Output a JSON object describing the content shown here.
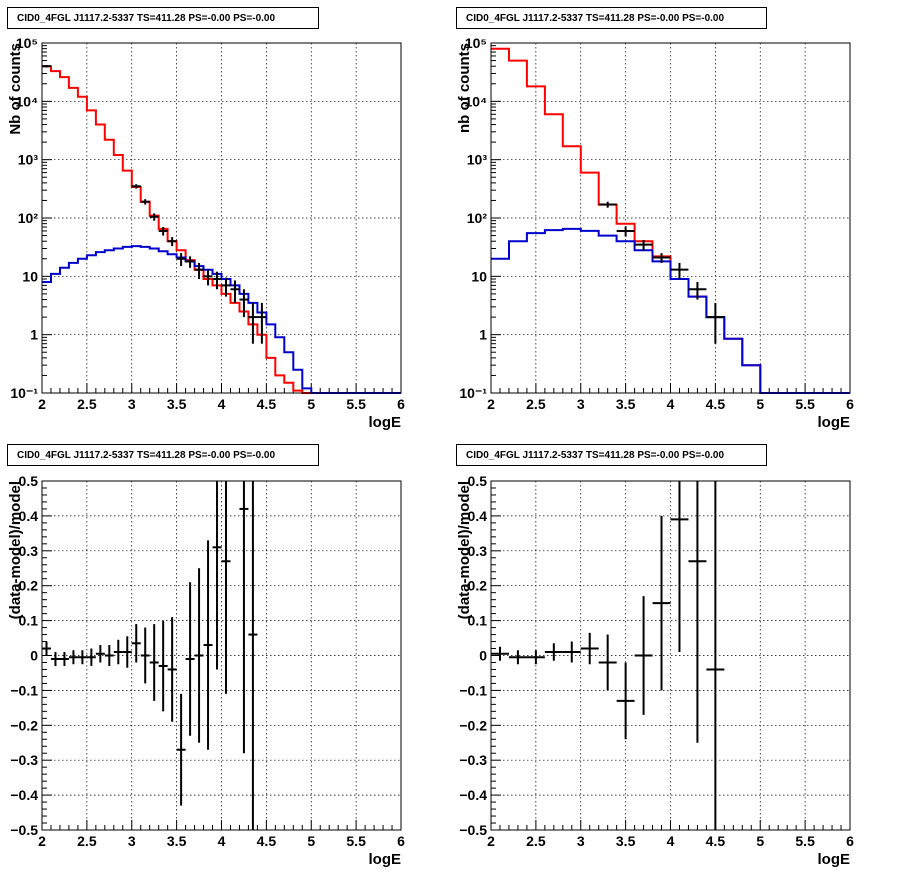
{
  "panels": [
    {
      "title": "CID0_4FGL J1117.2-5337 TS=411.28 PS=-0.00 PS=-0.00",
      "chart_data": {
        "type": "line",
        "xlabel": "logE",
        "ylabel": "Nb of counts",
        "xlim": [
          2,
          6
        ],
        "ylim": [
          0.1,
          100000
        ],
        "yscale": "log",
        "grid": true,
        "x_ticks": [
          "2",
          "2.5",
          "3",
          "3.5",
          "4",
          "4.5",
          "5",
          "5.5",
          "6"
        ],
        "y_ticks": [
          "10⁻¹",
          "1",
          "10",
          "10²",
          "10³",
          "10⁴",
          "10⁵"
        ],
        "bin_edges": [
          2.0,
          2.1,
          2.2,
          2.3,
          2.4,
          2.5,
          2.6,
          2.7,
          2.8,
          2.9,
          3.0,
          3.1,
          3.2,
          3.3,
          3.4,
          3.5,
          3.6,
          3.7,
          3.8,
          3.9,
          4.0,
          4.1,
          4.2,
          4.3,
          4.4,
          4.5,
          4.6,
          4.7,
          4.8,
          4.9,
          5.0,
          5.1,
          5.2,
          5.3,
          5.4,
          5.5,
          5.6,
          5.7,
          5.8,
          5.9,
          6.0
        ],
        "series": [
          {
            "color": "#ff0000",
            "values": [
              40000,
              33000,
              26000,
              17000,
              12000,
              7000,
              4000,
              2200,
              1200,
              650,
              340,
              190,
              110,
              65,
              40,
              28,
              19,
              13,
              9,
              7,
              5,
              3.5,
              2.5,
              1.5,
              1,
              0.4,
              0.2,
              0.15,
              0.11,
              0.1,
              0.1,
              0.1,
              0.1,
              0.1,
              0.1,
              0.1,
              0.1,
              0.1,
              0.1,
              0.1
            ]
          },
          {
            "color": "#0000cc",
            "values": [
              8,
              11,
              14,
              17,
              20,
              23,
              26,
              28,
              30,
              32,
              33,
              32,
              30,
              27,
              24,
              21,
              18,
              15,
              13,
              11,
              9,
              7,
              5,
              3.5,
              2.4,
              1.5,
              0.9,
              0.5,
              0.25,
              0.12,
              0.1,
              0.1,
              0.1,
              0.1,
              0.1,
              0.1,
              0.1,
              0.1,
              0.1,
              0.1
            ]
          }
        ],
        "points": [
          {
            "x": 2.05,
            "y": 40000,
            "lo": 38000,
            "hi": 42000
          },
          {
            "x": 3.05,
            "y": 350,
            "lo": 320,
            "hi": 380
          },
          {
            "x": 3.15,
            "y": 190,
            "lo": 170,
            "hi": 210
          },
          {
            "x": 3.25,
            "y": 105,
            "lo": 90,
            "hi": 120
          },
          {
            "x": 3.35,
            "y": 60,
            "lo": 50,
            "hi": 70
          },
          {
            "x": 3.45,
            "y": 40,
            "lo": 33,
            "hi": 47
          },
          {
            "x": 3.55,
            "y": 20,
            "lo": 15,
            "hi": 25
          },
          {
            "x": 3.65,
            "y": 18,
            "lo": 14,
            "hi": 22
          },
          {
            "x": 3.75,
            "y": 13,
            "lo": 9,
            "hi": 17
          },
          {
            "x": 3.85,
            "y": 10,
            "lo": 7,
            "hi": 13
          },
          {
            "x": 3.95,
            "y": 9,
            "lo": 6,
            "hi": 12
          },
          {
            "x": 4.05,
            "y": 7,
            "lo": 4.5,
            "hi": 9.5
          },
          {
            "x": 4.15,
            "y": 6,
            "lo": 3.5,
            "hi": 8.5
          },
          {
            "x": 4.25,
            "y": 4,
            "lo": 2,
            "hi": 6
          },
          {
            "x": 4.35,
            "y": 2,
            "lo": 0.7,
            "hi": 3.5
          },
          {
            "x": 4.45,
            "y": 2,
            "lo": 0.7,
            "hi": 3.5
          }
        ]
      }
    },
    {
      "title": "CID0_4FGL J1117.2-5337 TS=411.28 PS=-0.00 PS=-0.00",
      "chart_data": {
        "type": "line",
        "xlabel": "logE",
        "ylabel": "nb of counts",
        "xlim": [
          2,
          6
        ],
        "ylim": [
          0.1,
          100000
        ],
        "yscale": "log",
        "grid": true,
        "x_ticks": [
          "2",
          "2.5",
          "3",
          "3.5",
          "4",
          "4.5",
          "5",
          "5.5",
          "6"
        ],
        "y_ticks": [
          "10⁻¹",
          "1",
          "10",
          "10²",
          "10³",
          "10⁴",
          "10⁵"
        ],
        "bin_edges": [
          2.0,
          2.2,
          2.4,
          2.6,
          2.8,
          3.0,
          3.2,
          3.4,
          3.6,
          3.8,
          4.0,
          4.2,
          4.4,
          4.6,
          4.8,
          5.0,
          5.2,
          5.4,
          5.6,
          5.8,
          6.0
        ],
        "series": [
          {
            "color": "#ff0000",
            "values": [
              80000,
              50000,
              18000,
              6000,
              1700,
              600,
              170,
              80,
              40,
              22,
              9,
              4.5,
              2,
              0.85,
              0.3,
              0.1,
              0.1,
              0.1,
              0.1,
              0.1
            ]
          },
          {
            "color": "#0000cc",
            "values": [
              20,
              40,
              55,
              62,
              65,
              60,
              50,
              40,
              28,
              18,
              9,
              4.5,
              2,
              0.85,
              0.3,
              0.1,
              0.1,
              0.1,
              0.1,
              0.1
            ]
          }
        ],
        "points": [
          {
            "x": 3.3,
            "y": 170,
            "lo": 150,
            "hi": 190
          },
          {
            "x": 3.5,
            "y": 60,
            "lo": 48,
            "hi": 72
          },
          {
            "x": 3.7,
            "y": 35,
            "lo": 28,
            "hi": 42
          },
          {
            "x": 3.9,
            "y": 21,
            "lo": 17,
            "hi": 25
          },
          {
            "x": 4.1,
            "y": 13,
            "lo": 9,
            "hi": 17
          },
          {
            "x": 4.3,
            "y": 6,
            "lo": 4,
            "hi": 8
          },
          {
            "x": 4.5,
            "y": 2,
            "lo": 0.7,
            "hi": 3.5
          }
        ]
      }
    },
    {
      "title": "CID0_4FGL J1117.2-5337 TS=411.28 PS=-0.00 PS=-0.00",
      "chart_data": {
        "type": "scatter",
        "xlabel": "logE",
        "ylabel": "(data-model)/model",
        "xlim": [
          2,
          6
        ],
        "ylim": [
          -0.5,
          0.5
        ],
        "yscale": "linear",
        "grid": true,
        "x_ticks": [
          "2",
          "2.5",
          "3",
          "3.5",
          "4",
          "4.5",
          "5",
          "5.5",
          "6"
        ],
        "y_ticks": [
          "−0.5",
          "−0.4",
          "−0.3",
          "−0.2",
          "−0.1",
          "0",
          "0.1",
          "0.2",
          "0.3",
          "0.4",
          "0.5"
        ],
        "xerr": 0.05,
        "points": [
          {
            "x": 2.05,
            "y": 0.02,
            "err": 0.02
          },
          {
            "x": 2.15,
            "y": -0.01,
            "err": 0.02
          },
          {
            "x": 2.25,
            "y": -0.01,
            "err": 0.02
          },
          {
            "x": 2.35,
            "y": -0.005,
            "err": 0.02
          },
          {
            "x": 2.45,
            "y": -0.005,
            "err": 0.02
          },
          {
            "x": 2.55,
            "y": -0.005,
            "err": 0.025
          },
          {
            "x": 2.65,
            "y": 0.005,
            "err": 0.025
          },
          {
            "x": 2.75,
            "y": 0.0,
            "err": 0.03
          },
          {
            "x": 2.85,
            "y": 0.01,
            "err": 0.035
          },
          {
            "x": 2.95,
            "y": 0.01,
            "err": 0.045
          },
          {
            "x": 3.05,
            "y": 0.035,
            "err": 0.055
          },
          {
            "x": 3.15,
            "y": 0.0,
            "err": 0.08
          },
          {
            "x": 3.25,
            "y": -0.02,
            "err": 0.11
          },
          {
            "x": 3.35,
            "y": -0.03,
            "err": 0.13
          },
          {
            "x": 3.45,
            "y": -0.04,
            "err": 0.15
          },
          {
            "x": 3.55,
            "y": -0.27,
            "err": 0.16
          },
          {
            "x": 3.65,
            "y": -0.01,
            "err": 0.22
          },
          {
            "x": 3.75,
            "y": 0.0,
            "err": 0.25
          },
          {
            "x": 3.85,
            "y": 0.03,
            "err": 0.3
          },
          {
            "x": 3.95,
            "y": 0.31,
            "err": 0.35
          },
          {
            "x": 4.05,
            "y": 0.27,
            "err": 0.38
          },
          {
            "x": 4.25,
            "y": 0.42,
            "err": 0.7
          },
          {
            "x": 4.35,
            "y": 0.06,
            "err": 0.8
          }
        ]
      }
    },
    {
      "title": "CID0_4FGL J1117.2-5337 TS=411.28 PS=-0.00 PS=-0.00",
      "chart_data": {
        "type": "scatter",
        "xlabel": "logE",
        "ylabel": "(data-model)/model",
        "xlim": [
          2,
          6
        ],
        "ylim": [
          -0.5,
          0.5
        ],
        "yscale": "linear",
        "grid": true,
        "x_ticks": [
          "2",
          "2.5",
          "3",
          "3.5",
          "4",
          "4.5",
          "5",
          "5.5",
          "6"
        ],
        "y_ticks": [
          "−0.5",
          "−0.4",
          "−0.3",
          "−0.2",
          "−0.1",
          "0",
          "0.1",
          "0.2",
          "0.3",
          "0.4",
          "0.5"
        ],
        "xerr": 0.1,
        "points": [
          {
            "x": 2.1,
            "y": 0.005,
            "err": 0.02
          },
          {
            "x": 2.3,
            "y": -0.005,
            "err": 0.02
          },
          {
            "x": 2.5,
            "y": -0.005,
            "err": 0.02
          },
          {
            "x": 2.7,
            "y": 0.01,
            "err": 0.025
          },
          {
            "x": 2.9,
            "y": 0.01,
            "err": 0.03
          },
          {
            "x": 3.1,
            "y": 0.02,
            "err": 0.045
          },
          {
            "x": 3.3,
            "y": -0.02,
            "err": 0.08
          },
          {
            "x": 3.5,
            "y": -0.13,
            "err": 0.11
          },
          {
            "x": 3.7,
            "y": 0.0,
            "err": 0.17
          },
          {
            "x": 3.9,
            "y": 0.15,
            "err": 0.25
          },
          {
            "x": 4.1,
            "y": 0.39,
            "err": 0.38
          },
          {
            "x": 4.3,
            "y": 0.27,
            "err": 0.52
          },
          {
            "x": 4.5,
            "y": -0.04,
            "err": 0.6
          }
        ]
      }
    }
  ]
}
